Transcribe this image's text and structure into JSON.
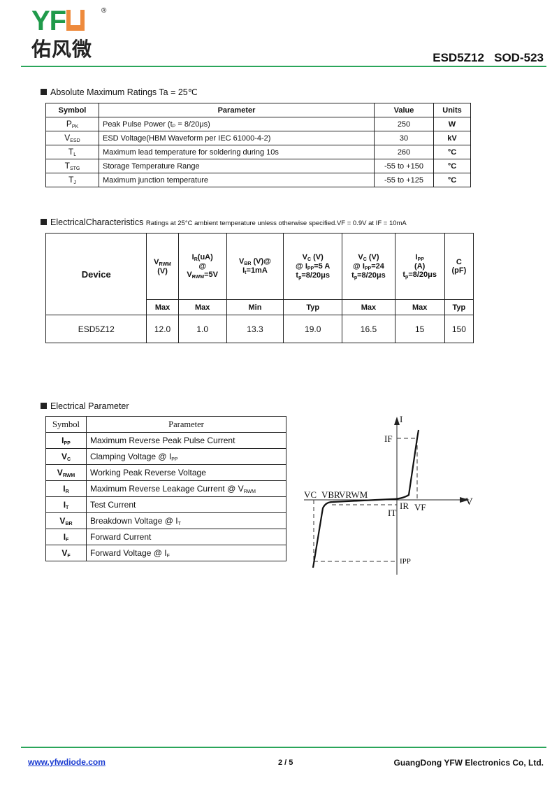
{
  "header": {
    "logo_text": "YFW",
    "logo_cn": "佑风微",
    "registered": "®",
    "title": "ESD5Z12   SOD-523"
  },
  "abs_max": {
    "heading": "Absolute Maximum Ratings Ta = 25℃",
    "columns": [
      "Symbol",
      "Parameter",
      "Value",
      "Units"
    ],
    "rows": [
      {
        "sym": "P",
        "sub": "PK",
        "param": "Peak Pulse Power (tₚ = 8/20μs)",
        "value": "250",
        "unit": "W"
      },
      {
        "sym": "V",
        "sub": "ESD",
        "param": "ESD Voltage(HBM Waveform per IEC 61000-4-2)",
        "value": "30",
        "unit": "kV"
      },
      {
        "sym": "T",
        "sub": "L",
        "param": "Maximum lead temperature for soldering during 10s",
        "value": "260",
        "unit": "°C"
      },
      {
        "sym": "T",
        "sub": "STG",
        "param": "Storage Temperature Range",
        "value": "-55 to +150",
        "unit": "°C"
      },
      {
        "sym": "T",
        "sub": "J",
        "param": "Maximum junction temperature",
        "value": "-55 to +125",
        "unit": "°C"
      }
    ]
  },
  "elec_char": {
    "heading": "ElectricalCharacteristics",
    "note": "Ratings at 25°C ambient temperature unless otherwise specified.VF = 0.9V at IF = 10mA",
    "device_label": "Device",
    "limits": [
      "Max",
      "Max",
      "Min",
      "Typ",
      "Max",
      "Max",
      "Typ"
    ],
    "row": [
      "ESD5Z12",
      "12.0",
      "1.0",
      "13.3",
      "19.0",
      "16.5",
      "15",
      "150"
    ]
  },
  "elec_param": {
    "heading": "Electrical Parameter",
    "columns": [
      "Symbol",
      "Parameter"
    ],
    "rows": [
      {
        "sym": "I",
        "sub": "PP",
        "param": "Maximum Reverse Peak Pulse Current"
      },
      {
        "sym": "V",
        "sub": "C",
        "param": "Clamping Voltage @ I",
        "psub": "PP"
      },
      {
        "sym": "V",
        "sub": "RWM",
        "param": "Working Peak Reverse Voltage"
      },
      {
        "sym": "I",
        "sub": "R",
        "param": "Maximum Reverse Leakage Current @ V",
        "psub": "RWM"
      },
      {
        "sym": "I",
        "sub": "T",
        "param": "Test Current"
      },
      {
        "sym": "V",
        "sub": "BR",
        "param": "Breakdown Voltage @ I",
        "psub": "T"
      },
      {
        "sym": "I",
        "sub": "F",
        "param": "Forward Current"
      },
      {
        "sym": "V",
        "sub": "F",
        "param": "Forward Voltage @ I",
        "psub": "F"
      }
    ]
  },
  "iv_curve": {
    "axis_i": "I",
    "axis_v": "V",
    "labels": {
      "if": "IF",
      "vc": "VC",
      "vbr": "VBR",
      "vrwm": "VRWM",
      "ir": "IR",
      "vf": "VF",
      "it": "IT",
      "ipp": "IPP"
    }
  },
  "footer": {
    "link": "www.yfwdiode.com",
    "page": "2 / 5",
    "company": "GuangDong YFW Electronics Co, Ltd."
  },
  "colors": {
    "brand_green": "#1f9a4a",
    "brand_orange": "#ee8a3c",
    "rule_green": "#2aa55a",
    "link_blue": "#1a3bd1"
  }
}
